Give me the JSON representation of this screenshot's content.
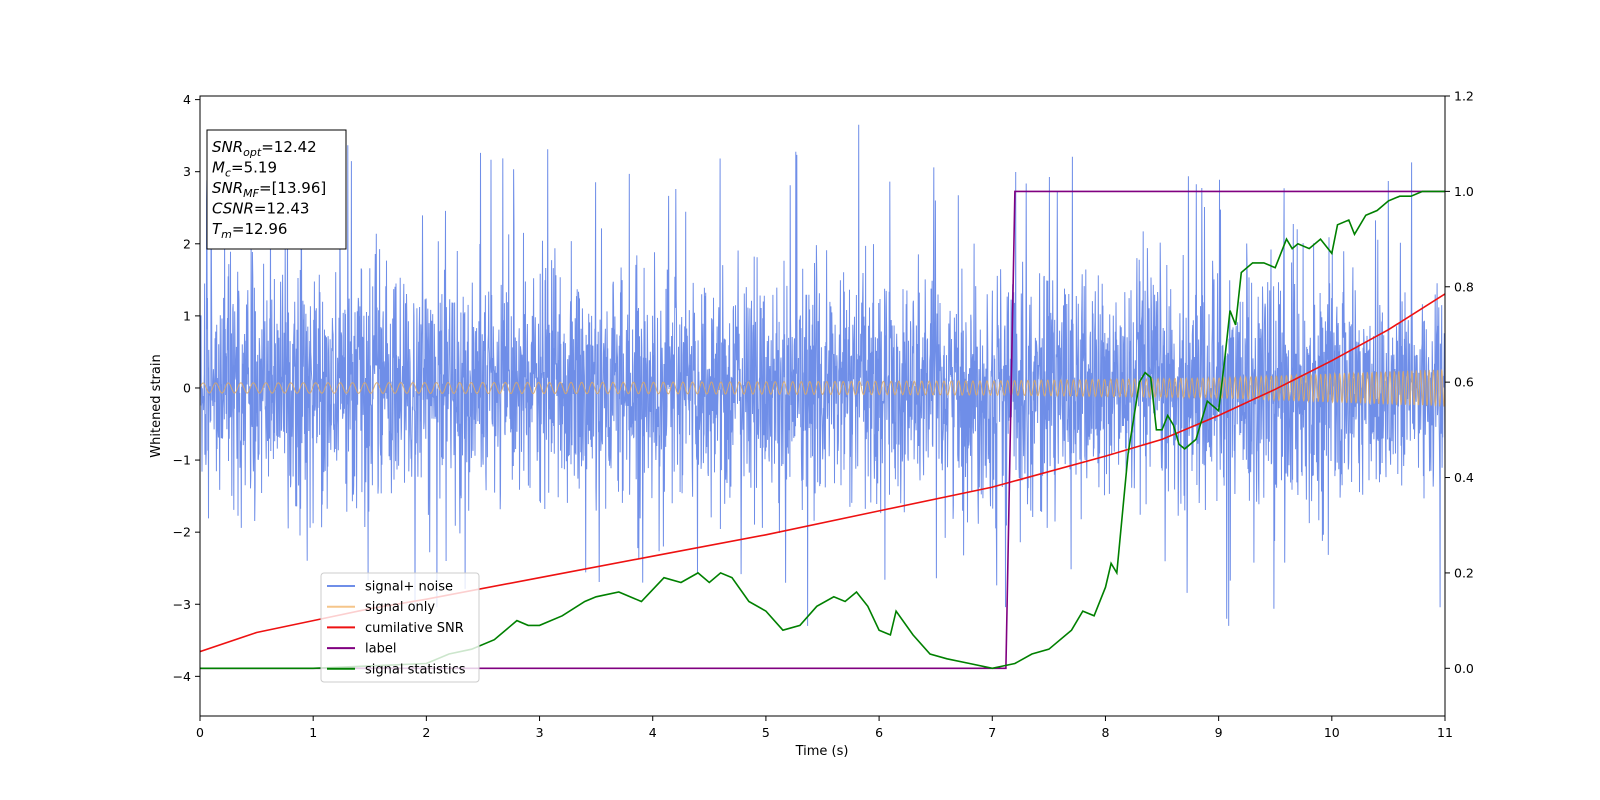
{
  "chart_data": {
    "type": "line",
    "xlabel": "Time (s)",
    "ylabel": "Whitened strain",
    "xlim": [
      0,
      11
    ],
    "ylim_left": [
      -4.55,
      4.05
    ],
    "ylim_right": [
      -0.1,
      1.2
    ],
    "x_ticks": [
      "0",
      "1",
      "2",
      "3",
      "4",
      "5",
      "6",
      "7",
      "8",
      "9",
      "10",
      "11"
    ],
    "y_left_ticks": [
      "4",
      "3",
      "2",
      "1",
      "0",
      "−1",
      "−2",
      "−3",
      "−4"
    ],
    "y_right_ticks": [
      "1.2",
      "1.0",
      "0.8",
      "0.6",
      "0.4",
      "0.2",
      "0.0"
    ],
    "annotation": {
      "lines": [
        {
          "sym": "SNR",
          "sub": "opt",
          "val": "=12.42"
        },
        {
          "sym": "M",
          "sub": "c",
          "val": "=5.19"
        },
        {
          "sym": "SNR",
          "sub": "MF",
          "val": "=[13.96]"
        },
        {
          "sym": "CSNR",
          "sub": "",
          "val": "=12.43"
        },
        {
          "sym": "T",
          "sub": "m",
          "val": "=12.96"
        }
      ]
    },
    "legend": {
      "position": "lower-left",
      "entries": [
        {
          "label": "signal+ noise",
          "color": "#6f8ee8"
        },
        {
          "label": "signal only",
          "color": "#f5c58a"
        },
        {
          "label": "cumilative SNR",
          "color": "#ee1111"
        },
        {
          "label": "label",
          "color": "#800080"
        },
        {
          "label": "signal statistics",
          "color": "#008000"
        }
      ]
    },
    "series": [
      {
        "name": "signal+ noise",
        "axis": "left",
        "color": "#6f8ee8",
        "description_values": {
          "noise_std": 0.8,
          "max_peak": 3.65,
          "min_peak": -3.2
        }
      },
      {
        "name": "signal only",
        "axis": "left",
        "color": "#d9a86c",
        "amplitude_envelope": {
          "x": [
            0,
            4,
            7,
            9,
            11
          ],
          "y": [
            0.07,
            0.08,
            0.1,
            0.14,
            0.26
          ]
        }
      },
      {
        "name": "cumilative SNR",
        "axis": "right",
        "color": "#ee1111",
        "x": [
          0,
          0.5,
          1,
          1.5,
          2,
          3,
          4,
          5,
          6,
          7,
          8,
          8.5,
          9,
          9.5,
          10,
          10.5,
          11
        ],
        "y": [
          0.035,
          0.075,
          0.1,
          0.125,
          0.145,
          0.19,
          0.235,
          0.28,
          0.33,
          0.38,
          0.445,
          0.48,
          0.53,
          0.585,
          0.645,
          0.71,
          0.785
        ]
      },
      {
        "name": "label",
        "axis": "right",
        "color": "#800080",
        "x": [
          0,
          7.12,
          7.2,
          11
        ],
        "y": [
          0.0,
          0.0,
          1.0,
          1.0
        ]
      },
      {
        "name": "signal statistics",
        "axis": "right",
        "color": "#008000",
        "x": [
          0,
          0.5,
          1,
          1.5,
          2,
          2.2,
          2.4,
          2.6,
          2.8,
          2.9,
          3.0,
          3.2,
          3.4,
          3.5,
          3.7,
          3.9,
          4.1,
          4.25,
          4.4,
          4.5,
          4.6,
          4.7,
          4.85,
          5.0,
          5.15,
          5.3,
          5.45,
          5.6,
          5.7,
          5.8,
          5.9,
          6.0,
          6.1,
          6.15,
          6.3,
          6.45,
          6.6,
          6.8,
          7.0,
          7.1,
          7.2,
          7.35,
          7.5,
          7.7,
          7.8,
          7.9,
          8.0,
          8.05,
          8.1,
          8.2,
          8.3,
          8.35,
          8.4,
          8.45,
          8.5,
          8.55,
          8.6,
          8.65,
          8.7,
          8.8,
          8.9,
          9.0,
          9.05,
          9.1,
          9.15,
          9.2,
          9.3,
          9.4,
          9.5,
          9.6,
          9.65,
          9.7,
          9.8,
          9.9,
          10.0,
          10.05,
          10.15,
          10.2,
          10.3,
          10.4,
          10.5,
          10.6,
          10.7,
          10.8,
          11.0
        ],
        "y": [
          0.0,
          0.0,
          0.0,
          0.005,
          0.01,
          0.03,
          0.04,
          0.06,
          0.1,
          0.09,
          0.09,
          0.11,
          0.14,
          0.15,
          0.16,
          0.14,
          0.19,
          0.18,
          0.2,
          0.18,
          0.2,
          0.19,
          0.14,
          0.12,
          0.08,
          0.09,
          0.13,
          0.15,
          0.14,
          0.16,
          0.13,
          0.08,
          0.07,
          0.12,
          0.07,
          0.03,
          0.02,
          0.01,
          0.0,
          0.005,
          0.01,
          0.03,
          0.04,
          0.08,
          0.12,
          0.11,
          0.17,
          0.22,
          0.2,
          0.45,
          0.6,
          0.62,
          0.61,
          0.5,
          0.5,
          0.53,
          0.51,
          0.47,
          0.46,
          0.48,
          0.56,
          0.54,
          0.64,
          0.75,
          0.72,
          0.83,
          0.85,
          0.85,
          0.84,
          0.9,
          0.88,
          0.89,
          0.88,
          0.9,
          0.87,
          0.93,
          0.94,
          0.91,
          0.95,
          0.96,
          0.98,
          0.99,
          0.99,
          1.0,
          1.0
        ]
      }
    ]
  }
}
